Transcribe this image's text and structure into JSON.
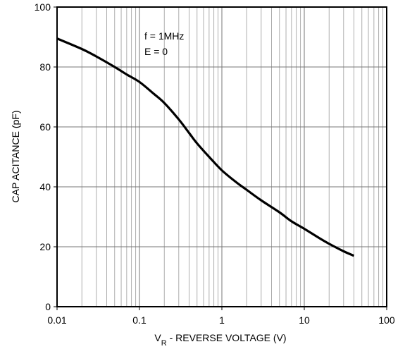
{
  "chart_data": {
    "type": "line",
    "xlabel": {
      "main": "V",
      "sub": "R",
      "rest": " - REVERSE VOLTAGE (V)"
    },
    "ylabel": "CAP ACITANCE (pF)",
    "x_scale": "log",
    "xlim": [
      0.01,
      100
    ],
    "ylim": [
      0,
      100
    ],
    "x_ticks": [
      0.01,
      0.1,
      1,
      10,
      100
    ],
    "x_tick_labels": [
      "0.01",
      "0.1",
      "1",
      "10",
      "100"
    ],
    "y_ticks": [
      0,
      20,
      40,
      60,
      80,
      100
    ],
    "y_tick_labels": [
      "0",
      "20",
      "40",
      "60",
      "80",
      "100"
    ],
    "grid": true,
    "annotations": [
      "f = 1MHz",
      "E = 0"
    ],
    "series": [
      {
        "x": [
          0.01,
          0.02,
          0.03,
          0.05,
          0.07,
          0.1,
          0.15,
          0.2,
          0.3,
          0.4,
          0.5,
          0.7,
          1,
          1.5,
          2,
          3,
          5,
          7,
          10,
          15,
          20,
          30,
          40
        ],
        "y": [
          89.5,
          86.0,
          83.5,
          80.0,
          77.5,
          75.0,
          71.0,
          68.0,
          62.5,
          58.0,
          54.5,
          50.0,
          45.5,
          41.5,
          39.0,
          35.5,
          31.5,
          28.5,
          26.0,
          23.0,
          21.0,
          18.5,
          17.0
        ],
        "color": "#000000"
      }
    ]
  }
}
